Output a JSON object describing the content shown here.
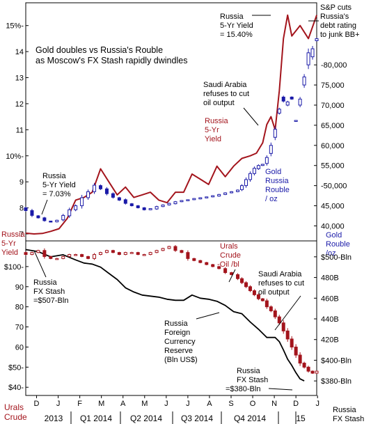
{
  "chart_data": [
    {
      "type": "line",
      "panel": "top",
      "title": "Gold doubles vs Russia's Rouble as Moscow's FX Stash rapidly dwindles",
      "title_lines": [
        "Gold doubles vs Russia's Rouble",
        "as Moscow's FX Stash rapidly dwindles"
      ],
      "left_axis": {
        "ylim": [
          7,
          15.5
        ],
        "tick_labels": [
          "15%-",
          "14",
          "13",
          "12",
          "11",
          "10%-",
          "9",
          "8",
          "7"
        ],
        "tick_values": [
          15,
          14,
          13,
          12,
          11,
          10,
          9,
          8,
          7
        ],
        "label_lines": [
          "Russia",
          "5-Yr",
          "Yield"
        ],
        "label_color": "#a3141c"
      },
      "right_axis": {
        "ylim": [
          38000,
          93000
        ],
        "tick_labels": [
          "-80,000",
          "75,000",
          "70,000",
          "65,000",
          "60,000",
          "55,000",
          "-50,000",
          "45,000",
          "40,000"
        ],
        "tick_values": [
          80000,
          75000,
          70000,
          65000,
          60000,
          55000,
          50000,
          45000,
          40000
        ],
        "label_lines": [
          "Gold",
          "Rouble",
          "/oz"
        ],
        "label_color": "#1a1aa8"
      },
      "series": [
        {
          "name": "Russia 5-Yr Yield",
          "axis": "left",
          "color": "#a3141c",
          "x": [
            0,
            2,
            4,
            6,
            8,
            10,
            12,
            14,
            16,
            18,
            20,
            22,
            24,
            26,
            28,
            30,
            32,
            34,
            36,
            38,
            40,
            42,
            44,
            46,
            48,
            50,
            52,
            54,
            55.5,
            57,
            58,
            59,
            60,
            61,
            62,
            63,
            64,
            66,
            68,
            70
          ],
          "values": [
            7.03,
            7.0,
            7.02,
            7.1,
            7.2,
            7.6,
            8.3,
            8.4,
            8.6,
            9.5,
            9.0,
            8.5,
            8.8,
            8.4,
            8.5,
            8.6,
            8.3,
            8.2,
            8.6,
            8.6,
            9.3,
            9.1,
            8.9,
            9.6,
            9.2,
            9.6,
            9.9,
            10.0,
            10.1,
            10.5,
            11.2,
            11.5,
            11.0,
            12.5,
            14.5,
            15.4,
            14.6,
            15.0,
            14.5,
            15.4
          ]
        },
        {
          "name": "Gold Russia Rouble / oz",
          "type": "candlestick",
          "axis": "right",
          "color": "#1a1aa8",
          "x": [
            0,
            1.5,
            3,
            4.5,
            6,
            7.5,
            9,
            10.5,
            12,
            13.5,
            15,
            16.5,
            18,
            19.5,
            21,
            22.5,
            24,
            25.5,
            27,
            28.5,
            30,
            31.5,
            33,
            34.5,
            36,
            37.5,
            39,
            40.5,
            42,
            43.5,
            45,
            46.5,
            48,
            49.5,
            51,
            52,
            53,
            54,
            55,
            56,
            57,
            58,
            59,
            60,
            61,
            62,
            63,
            64,
            65,
            66,
            67,
            68,
            69,
            70
          ],
          "open": [
            44500,
            43800,
            42500,
            42000,
            41200,
            41000,
            41500,
            42500,
            44000,
            45000,
            47000,
            48500,
            50000,
            49200,
            48000,
            47000,
            46500,
            45500,
            45000,
            44500,
            44000,
            44200,
            44800,
            45200,
            45500,
            46000,
            46300,
            46500,
            46700,
            47000,
            47200,
            47400,
            47800,
            48200,
            48500,
            49000,
            50000,
            51500,
            53000,
            54200,
            55000,
            55500,
            58000,
            62000,
            68000,
            72000,
            70000,
            72000,
            66000,
            70000,
            75000,
            80000,
            82000,
            86000
          ],
          "close": [
            43800,
            42600,
            42000,
            41300,
            41100,
            41400,
            42600,
            44000,
            45000,
            47000,
            48500,
            50100,
            49200,
            48000,
            47100,
            46400,
            45600,
            45000,
            44500,
            44000,
            44300,
            44800,
            45200,
            45600,
            46000,
            46300,
            46500,
            46800,
            47000,
            47200,
            47500,
            47800,
            48200,
            48500,
            48900,
            50000,
            51500,
            53000,
            54300,
            55000,
            55300,
            57000,
            60000,
            64000,
            69000,
            71000,
            70800,
            71500,
            66200,
            71500,
            77000,
            83000,
            84000,
            86500
          ],
          "up_color": "#ffffff",
          "down_color": "#1a1aa8"
        }
      ],
      "annotations": [
        {
          "lines": [
            "Russia",
            "5-Yr Yield",
            "= 15.40%"
          ],
          "color": "#000000"
        },
        {
          "lines": [
            "S&P cuts",
            "Russia's",
            "debt rating",
            "to junk BB+"
          ],
          "color": "#000000"
        },
        {
          "lines": [
            "Saudi Arabia",
            "refuses to cut",
            "oil output"
          ],
          "color": "#000000"
        },
        {
          "lines": [
            "Russia",
            "5-Yr",
            "Yield"
          ],
          "color": "#a3141c"
        },
        {
          "lines": [
            "Gold",
            "Russia",
            "Rouble",
            "/ oz"
          ],
          "color": "#1a1aa8"
        },
        {
          "lines": [
            "Russia",
            "5-Yr Yield",
            "= 7.03%"
          ],
          "color": "#000000"
        }
      ]
    },
    {
      "type": "line",
      "panel": "bottom",
      "left_axis": {
        "ylim": [
          38,
          110
        ],
        "tick_labels": [
          "$100-",
          "90",
          "80",
          "70",
          "60",
          "$50-",
          "$40-"
        ],
        "tick_values": [
          100,
          90,
          80,
          70,
          60,
          50,
          40
        ],
        "label_lines": [
          "Urals",
          "Crude"
        ],
        "label_color": "#a3141c"
      },
      "right_axis": {
        "ylim": [
          370,
          510
        ],
        "tick_labels": [
          "$500-Bln",
          "480B",
          "460B",
          "440B",
          "420B",
          "$400-Bln",
          "$380-Bln"
        ],
        "tick_values": [
          500,
          480,
          460,
          440,
          420,
          400,
          380
        ],
        "label_lines": [
          "Russia",
          "FX Stash"
        ],
        "label_color": "#000000"
      },
      "series": [
        {
          "name": "Russia Foreign Currency Reserve (Bln US$)",
          "axis": "right",
          "color": "#000000",
          "x": [
            0,
            3,
            6,
            9,
            12,
            14,
            16,
            18,
            20,
            22,
            24,
            26,
            28,
            30,
            32,
            34,
            36,
            38,
            40,
            42,
            44,
            46,
            48,
            50,
            52,
            54,
            56,
            58,
            60,
            61,
            62,
            63,
            64,
            65,
            66,
            67
          ],
          "values": [
            507,
            505,
            500,
            502,
            497,
            494,
            493,
            490,
            484,
            478,
            470,
            466,
            463,
            462,
            461,
            459,
            458,
            458,
            463,
            460,
            459,
            457,
            453,
            447,
            445,
            437,
            430,
            422,
            422,
            418,
            410,
            401,
            395,
            388,
            382,
            380
          ]
        },
        {
          "name": "Urals Crude -Oil /bl",
          "type": "candlestick",
          "axis": "left",
          "color": "#a3141c",
          "x": [
            0,
            1.5,
            3,
            4.5,
            6,
            7.5,
            9,
            10.5,
            12,
            13.5,
            15,
            16.5,
            18,
            19.5,
            21,
            22.5,
            24,
            25.5,
            27,
            28.5,
            30,
            31.5,
            33,
            34.5,
            36,
            37.5,
            39,
            40.5,
            42,
            43.5,
            45,
            46.5,
            48,
            49.5,
            51,
            52,
            53,
            54,
            55,
            56,
            57,
            58,
            59,
            60,
            61,
            62,
            63,
            64,
            65,
            66,
            67,
            68,
            69,
            70
          ],
          "open": [
            107,
            106,
            107,
            108,
            105,
            104,
            104,
            105,
            106,
            106,
            105,
            104,
            106,
            107,
            108,
            107,
            106,
            107,
            107,
            106,
            106,
            107,
            108,
            109,
            110,
            108,
            107,
            104,
            103,
            102,
            101,
            100,
            99,
            97,
            96,
            94,
            92,
            90,
            88,
            86,
            84,
            83,
            80,
            78,
            75,
            72,
            68,
            64,
            60,
            56,
            52,
            50,
            48,
            47
          ],
          "close": [
            106,
            107,
            108,
            105,
            104,
            104,
            105,
            106,
            106,
            105,
            104,
            106,
            107,
            108,
            107,
            106,
            107,
            107,
            106,
            106,
            107,
            108,
            109,
            110,
            108,
            107,
            104,
            103,
            102,
            101,
            100,
            99,
            97,
            96,
            94,
            92,
            90,
            88,
            86,
            84,
            83,
            80,
            78,
            75,
            72,
            68,
            64,
            60,
            56,
            52,
            50,
            48,
            47,
            48
          ],
          "up_color": "#ffffff",
          "down_color": "#a3141c"
        }
      ],
      "annotations": [
        {
          "lines": [
            "Urals",
            "Crude",
            "-Oil /bl"
          ],
          "color": "#a3141c"
        },
        {
          "lines": [
            "Saudi Arabia",
            "refuses to cut",
            "oil output"
          ],
          "color": "#000000"
        },
        {
          "lines": [
            "Russia",
            "FX Stash",
            "=$507-Bln"
          ],
          "color": "#000000"
        },
        {
          "lines": [
            "Russia",
            "Foreign",
            "Currency",
            "Reserve",
            "(Bln US$)"
          ],
          "color": "#000000"
        },
        {
          "lines": [
            "Russia",
            "FX Stash",
            "=$380-Bln"
          ],
          "color": "#000000"
        }
      ]
    }
  ],
  "x_axis": {
    "month_labels": [
      "D",
      "J",
      "F",
      "M",
      "A",
      "M",
      "J",
      "J",
      "A",
      "S",
      "O",
      "N",
      "D",
      "J"
    ],
    "period_labels": [
      "2013",
      "Q1 2014",
      "Q2 2014",
      "Q3 2014",
      "Q4 2014",
      "15"
    ]
  }
}
